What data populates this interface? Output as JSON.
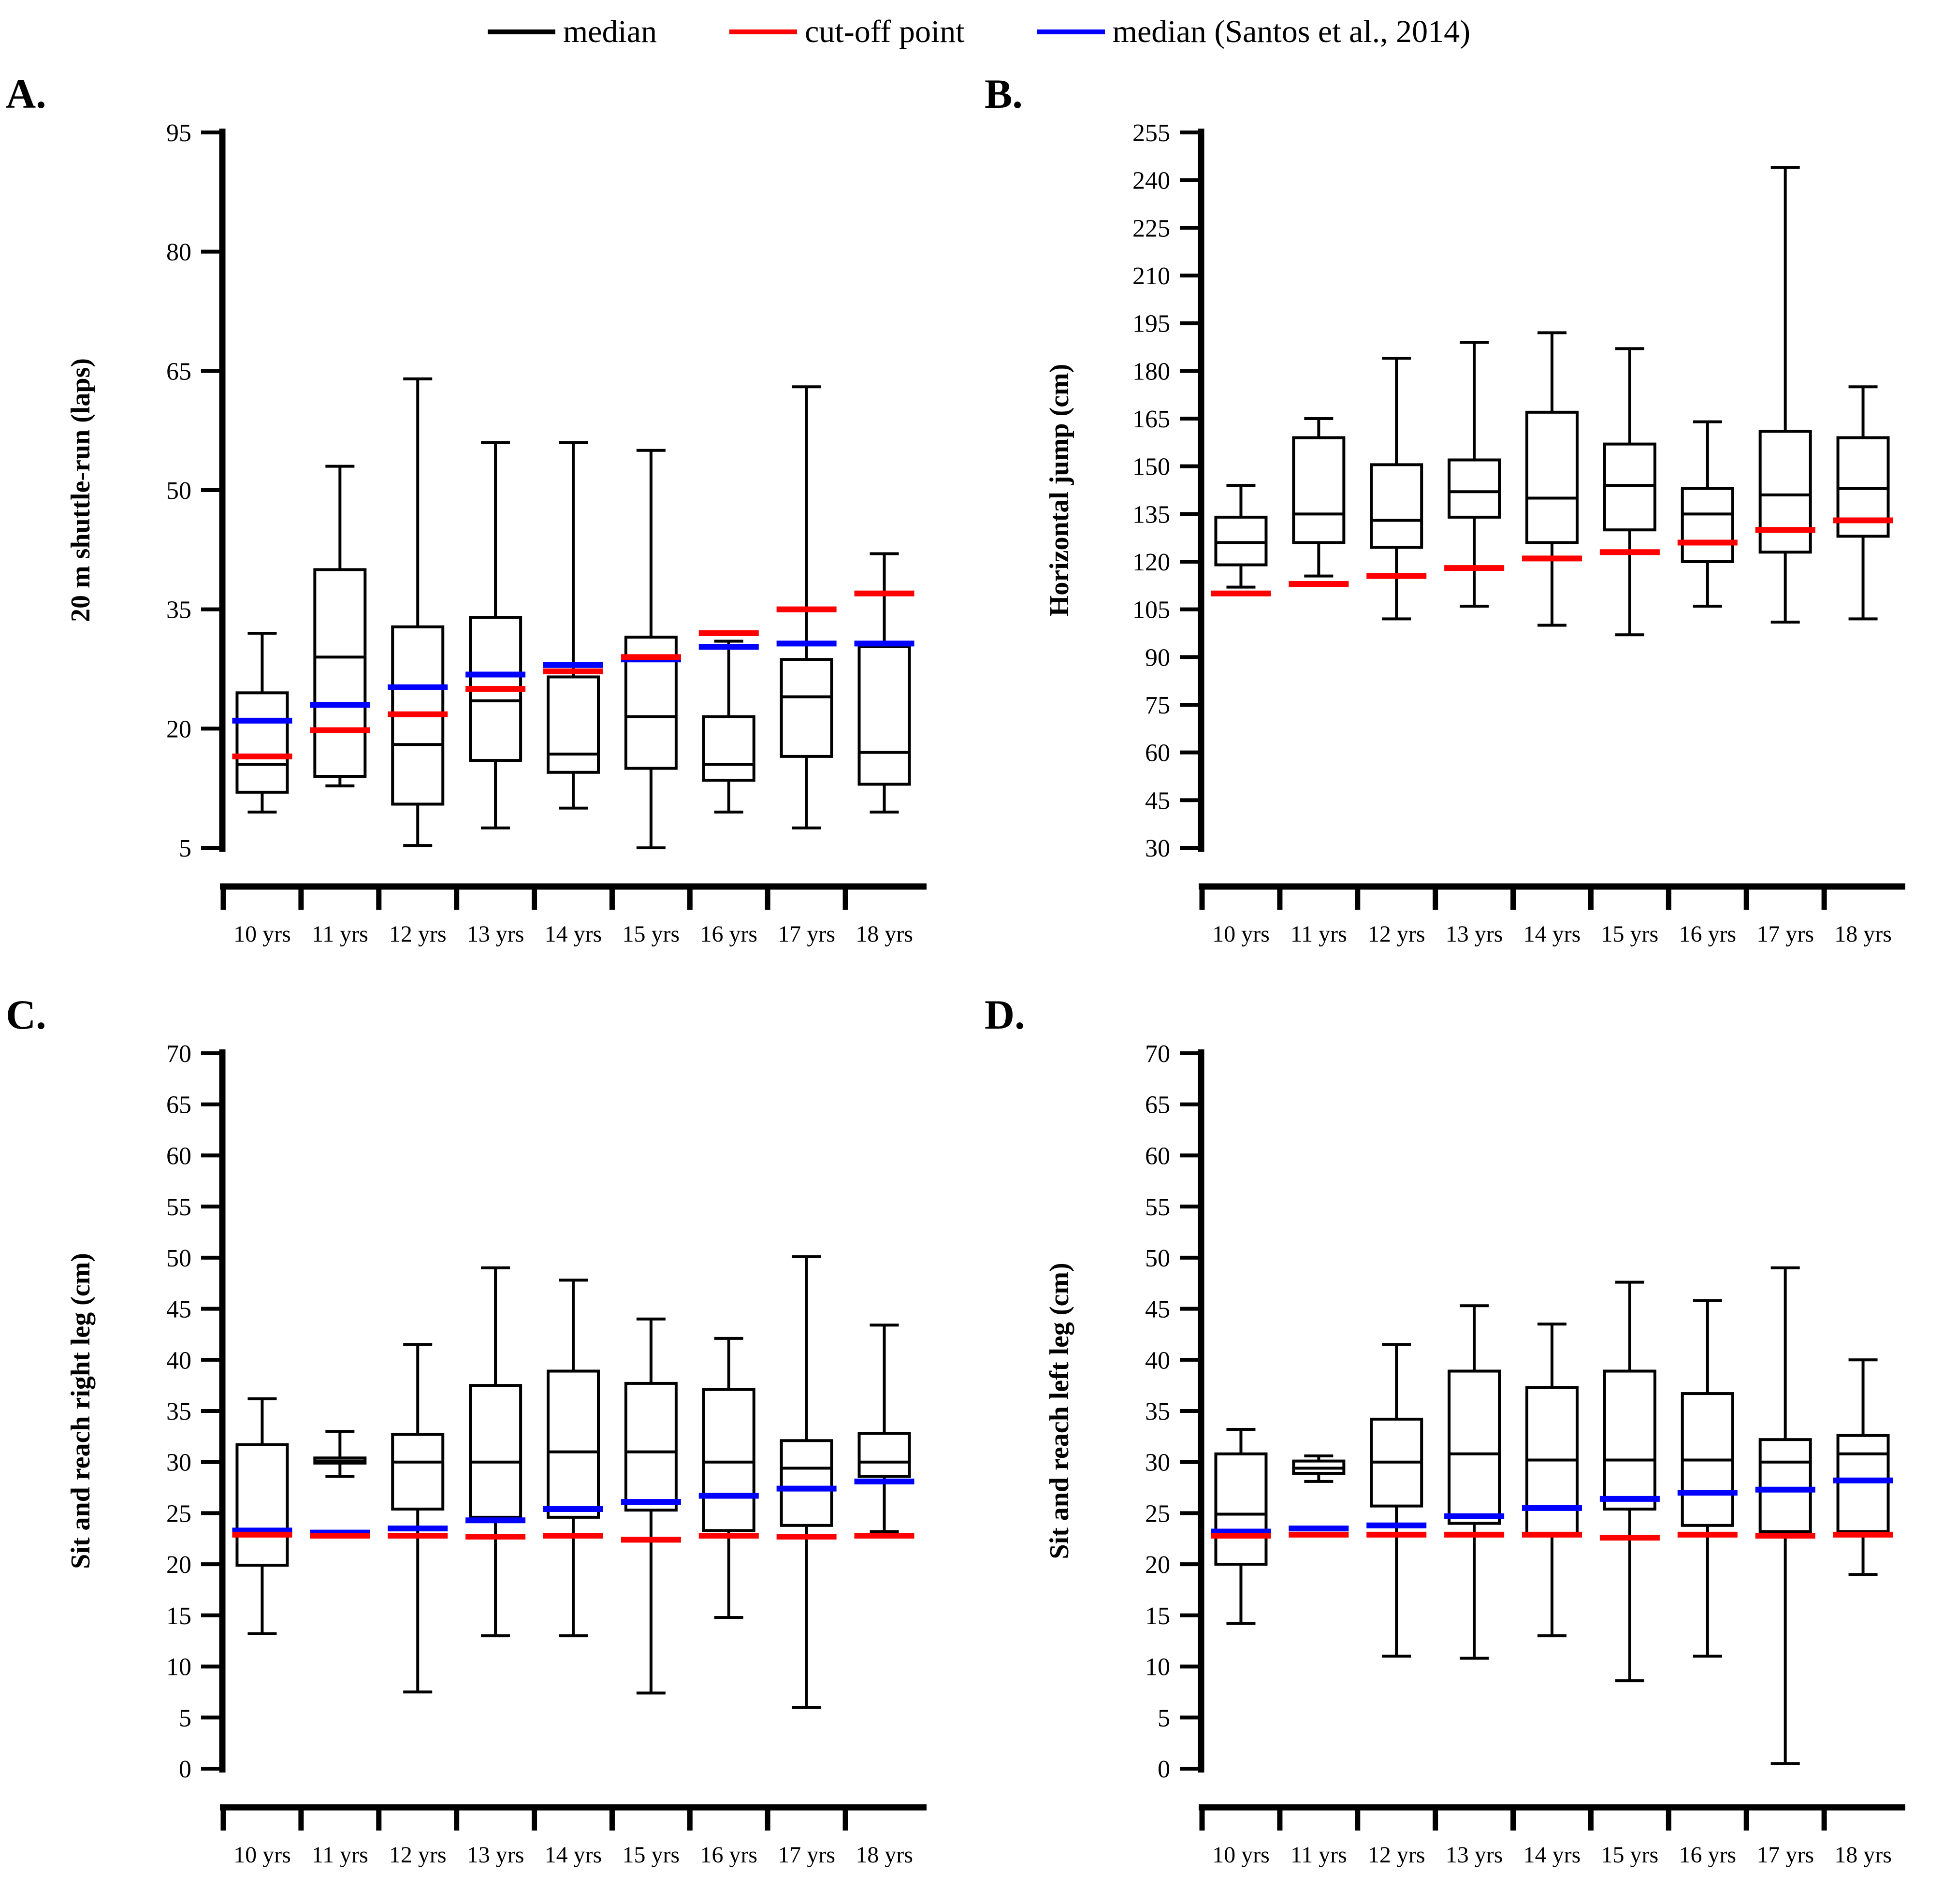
{
  "legend": {
    "items": [
      {
        "label": "median",
        "color": "#000000"
      },
      {
        "label": "cut-off point",
        "color": "#FF0000"
      },
      {
        "label": "median (Santos et al., 2014)",
        "color": "#0000FF"
      }
    ]
  },
  "categories": [
    "10 yrs",
    "11 yrs",
    "12 yrs",
    "13 yrs",
    "14 yrs",
    "15 yrs",
    "16 yrs",
    "17 yrs",
    "18 yrs"
  ],
  "chart_data": [
    {
      "type": "boxplot",
      "panel_label": "A.",
      "ylabel": "20 m shuttle-run (laps)",
      "ylim": [
        5,
        95
      ],
      "yticks": [
        5,
        20,
        35,
        50,
        65,
        80,
        95
      ],
      "categories": [
        "10 yrs",
        "11 yrs",
        "12 yrs",
        "13 yrs",
        "14 yrs",
        "15 yrs",
        "16 yrs",
        "17 yrs",
        "18 yrs"
      ],
      "boxes": [
        {
          "low": 9.5,
          "q1": 12,
          "median": 15.5,
          "q3": 24.5,
          "high": 32,
          "cutoff": 16.5,
          "santos": 21
        },
        {
          "low": 12.8,
          "q1": 14,
          "median": 29,
          "q3": 40,
          "high": 53,
          "cutoff": 19.8,
          "santos": 23
        },
        {
          "low": 5.3,
          "q1": 10.5,
          "median": 18,
          "q3": 32.8,
          "high": 64,
          "cutoff": 21.8,
          "santos": 25.2
        },
        {
          "low": 7.5,
          "q1": 16,
          "median": 23.5,
          "q3": 34,
          "high": 56,
          "cutoff": 25,
          "santos": 26.8
        },
        {
          "low": 10,
          "q1": 14.5,
          "median": 16.8,
          "q3": 26.5,
          "high": 56,
          "cutoff": 27.2,
          "santos": 28
        },
        {
          "low": 5,
          "q1": 15,
          "median": 21.5,
          "q3": 31.5,
          "high": 55,
          "cutoff": 29,
          "santos": 28.7
        },
        {
          "low": 9.5,
          "q1": 13.5,
          "median": 15.5,
          "q3": 21.5,
          "high": 31,
          "cutoff": 32,
          "santos": 30.3
        },
        {
          "low": 7.5,
          "q1": 16.5,
          "median": 24,
          "q3": 28.7,
          "high": 63,
          "cutoff": 35,
          "santos": 30.7
        },
        {
          "low": 9.5,
          "q1": 13,
          "median": 17,
          "q3": 30.3,
          "high": 42,
          "cutoff": 37,
          "santos": 30.7
        }
      ]
    },
    {
      "type": "boxplot",
      "panel_label": "B.",
      "ylabel": "Horizontal jump (cm)",
      "ylim": [
        30,
        255
      ],
      "yticks": [
        30,
        45,
        60,
        75,
        90,
        105,
        120,
        135,
        150,
        165,
        180,
        195,
        210,
        225,
        240,
        255
      ],
      "categories": [
        "10 yrs",
        "11 yrs",
        "12 yrs",
        "13 yrs",
        "14 yrs",
        "15 yrs",
        "16 yrs",
        "17 yrs",
        "18 yrs"
      ],
      "boxes": [
        {
          "low": 112,
          "q1": 119,
          "median": 126,
          "q3": 134,
          "high": 144,
          "cutoff": 110,
          "santos": null
        },
        {
          "low": 115.5,
          "q1": 126,
          "median": 135,
          "q3": 159,
          "high": 165,
          "cutoff": 113,
          "santos": null
        },
        {
          "low": 102,
          "q1": 124.5,
          "median": 133,
          "q3": 150.5,
          "high": 184,
          "cutoff": 115.5,
          "santos": null
        },
        {
          "low": 106,
          "q1": 134,
          "median": 142,
          "q3": 152,
          "high": 189,
          "cutoff": 118,
          "santos": null
        },
        {
          "low": 100,
          "q1": 126,
          "median": 140,
          "q3": 167,
          "high": 192,
          "cutoff": 121,
          "santos": null
        },
        {
          "low": 97,
          "q1": 130,
          "median": 144,
          "q3": 157,
          "high": 187,
          "cutoff": 123,
          "santos": null
        },
        {
          "low": 106,
          "q1": 120,
          "median": 135,
          "q3": 143,
          "high": 164,
          "cutoff": 126,
          "santos": null
        },
        {
          "low": 101,
          "q1": 123,
          "median": 141,
          "q3": 161,
          "high": 244,
          "cutoff": 130,
          "santos": null
        },
        {
          "low": 102,
          "q1": 128,
          "median": 143,
          "q3": 159,
          "high": 175,
          "cutoff": 133,
          "santos": null
        }
      ]
    },
    {
      "type": "boxplot",
      "panel_label": "C.",
      "ylabel": "Sit and reach right leg (cm)",
      "ylim": [
        0,
        70
      ],
      "yticks": [
        0,
        5,
        10,
        15,
        20,
        25,
        30,
        35,
        40,
        45,
        50,
        55,
        60,
        65,
        70
      ],
      "categories": [
        "10 yrs",
        "11 yrs",
        "12 yrs",
        "13 yrs",
        "14 yrs",
        "15 yrs",
        "16 yrs",
        "17 yrs",
        "18 yrs"
      ],
      "boxes": [
        {
          "low": 13.2,
          "q1": 19.9,
          "median": 23.2,
          "q3": 31.7,
          "high": 36.2,
          "cutoff": 22.9,
          "santos": 23.3
        },
        {
          "low": 28.6,
          "q1": 29.9,
          "median": 30.1,
          "q3": 30.4,
          "high": 33,
          "cutoff": 22.8,
          "santos": 23.1
        },
        {
          "low": 7.5,
          "q1": 25.4,
          "median": 30,
          "q3": 32.7,
          "high": 41.5,
          "cutoff": 22.8,
          "santos": 23.5
        },
        {
          "low": 13,
          "q1": 24.6,
          "median": 30,
          "q3": 37.5,
          "high": 49,
          "cutoff": 22.7,
          "santos": 24.3
        },
        {
          "low": 13,
          "q1": 24.6,
          "median": 31,
          "q3": 38.9,
          "high": 47.8,
          "cutoff": 22.8,
          "santos": 25.4
        },
        {
          "low": 7.4,
          "q1": 25.3,
          "median": 31,
          "q3": 37.7,
          "high": 44,
          "cutoff": 22.4,
          "santos": 26.1
        },
        {
          "low": 14.8,
          "q1": 23.3,
          "median": 30,
          "q3": 37.1,
          "high": 42.1,
          "cutoff": 22.8,
          "santos": 26.7
        },
        {
          "low": 6,
          "q1": 23.8,
          "median": 29.4,
          "q3": 32.1,
          "high": 50.1,
          "cutoff": 22.7,
          "santos": 27.4
        },
        {
          "low": 23.2,
          "q1": 28.6,
          "median": 30,
          "q3": 32.8,
          "high": 43.4,
          "cutoff": 22.8,
          "santos": 28.1
        }
      ]
    },
    {
      "type": "boxplot",
      "panel_label": "D.",
      "ylabel": "Sit and reach left leg (cm)",
      "ylim": [
        0,
        70
      ],
      "yticks": [
        0,
        5,
        10,
        15,
        20,
        25,
        30,
        35,
        40,
        45,
        50,
        55,
        60,
        65,
        70
      ],
      "categories": [
        "10 yrs",
        "11 yrs",
        "12 yrs",
        "13 yrs",
        "14 yrs",
        "15 yrs",
        "16 yrs",
        "17 yrs",
        "18 yrs"
      ],
      "boxes": [
        {
          "low": 14.2,
          "q1": 20,
          "median": 24.9,
          "q3": 30.8,
          "high": 33.2,
          "cutoff": 22.8,
          "santos": 23.2
        },
        {
          "low": 28.1,
          "q1": 28.9,
          "median": 29.4,
          "q3": 30.1,
          "high": 30.6,
          "cutoff": 22.9,
          "santos": 23.5
        },
        {
          "low": 11,
          "q1": 25.7,
          "median": 30,
          "q3": 34.2,
          "high": 41.5,
          "cutoff": 22.9,
          "santos": 23.8
        },
        {
          "low": 10.8,
          "q1": 24,
          "median": 30.8,
          "q3": 38.9,
          "high": 45.3,
          "cutoff": 22.9,
          "santos": 24.7
        },
        {
          "low": 13,
          "q1": 23,
          "median": 30.2,
          "q3": 37.3,
          "high": 43.5,
          "cutoff": 22.9,
          "santos": 25.5
        },
        {
          "low": 8.6,
          "q1": 25.4,
          "median": 30.2,
          "q3": 38.9,
          "high": 47.6,
          "cutoff": 22.6,
          "santos": 26.4
        },
        {
          "low": 11,
          "q1": 23.8,
          "median": 30.2,
          "q3": 36.7,
          "high": 45.8,
          "cutoff": 22.9,
          "santos": 27
        },
        {
          "low": 0.5,
          "q1": 23.2,
          "median": 30,
          "q3": 32.2,
          "high": 49,
          "cutoff": 22.8,
          "santos": 27.3
        },
        {
          "low": 19,
          "q1": 23.2,
          "median": 30.8,
          "q3": 32.6,
          "high": 40,
          "cutoff": 22.9,
          "santos": 28.2
        }
      ]
    }
  ]
}
